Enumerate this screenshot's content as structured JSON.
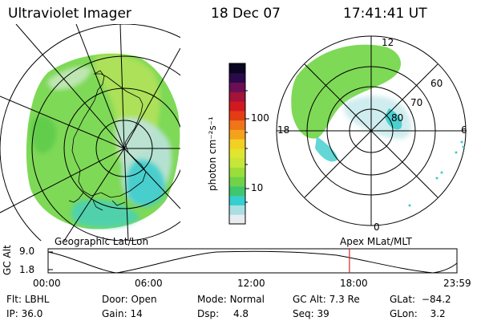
{
  "header": {
    "instrument": "Ultraviolet Imager",
    "date": "18 Dec 07",
    "time": "17:41:41 UT"
  },
  "colorbar": {
    "unit_label": "photon cm⁻²s⁻¹",
    "ticks": [
      "100",
      "10"
    ],
    "scale": "log",
    "colors": [
      "#e8ecee",
      "#a9dfe3",
      "#35cfd0",
      "#3fc66e",
      "#6fd24a",
      "#9ade3a",
      "#c6e63a",
      "#e0e52f",
      "#f2d024",
      "#f4a21b",
      "#f07418",
      "#e43c14",
      "#d01a1f",
      "#a3133a",
      "#6a0f55",
      "#2a0a4a",
      "#0a0520"
    ]
  },
  "map_labels": {
    "left_panel": "Geographic Lat/Lon",
    "right_panel": "Apex MLat/MLT",
    "mlt_top": "12",
    "mlt_left": "18",
    "mlt_right": "6",
    "mlt_bottom": "0",
    "lat_60": "60",
    "lat_70": "70",
    "lat_80": "80"
  },
  "timeline": {
    "ylabel": "GC Alt",
    "y_ticks": [
      "9.0",
      "1.8"
    ],
    "x_ticks": [
      "00:00",
      "06:00",
      "12:00",
      "18:00",
      "23:59"
    ],
    "marker_color": "#e02020",
    "current_time_hours": 17.69
  },
  "status": {
    "flt_label": "Flt:",
    "flt_value": "LBHL",
    "ip_label": "IP:",
    "ip_value": "36.0",
    "door_label": "Door:",
    "door_value": "Open",
    "gain_label": "Gain:",
    "gain_value": "14",
    "mode_label": "Mode:",
    "mode_value": "Normal",
    "dsp_label": "Dsp:",
    "dsp_value": "4.8",
    "gcalt_label": "GC Alt:",
    "gcalt_value": "7.3 Re",
    "seq_label": "Seq:",
    "seq_value": "39",
    "glat_label": "GLat:",
    "glat_value": "−84.2",
    "glon_label": "GLon:",
    "glon_value": "3.2"
  }
}
